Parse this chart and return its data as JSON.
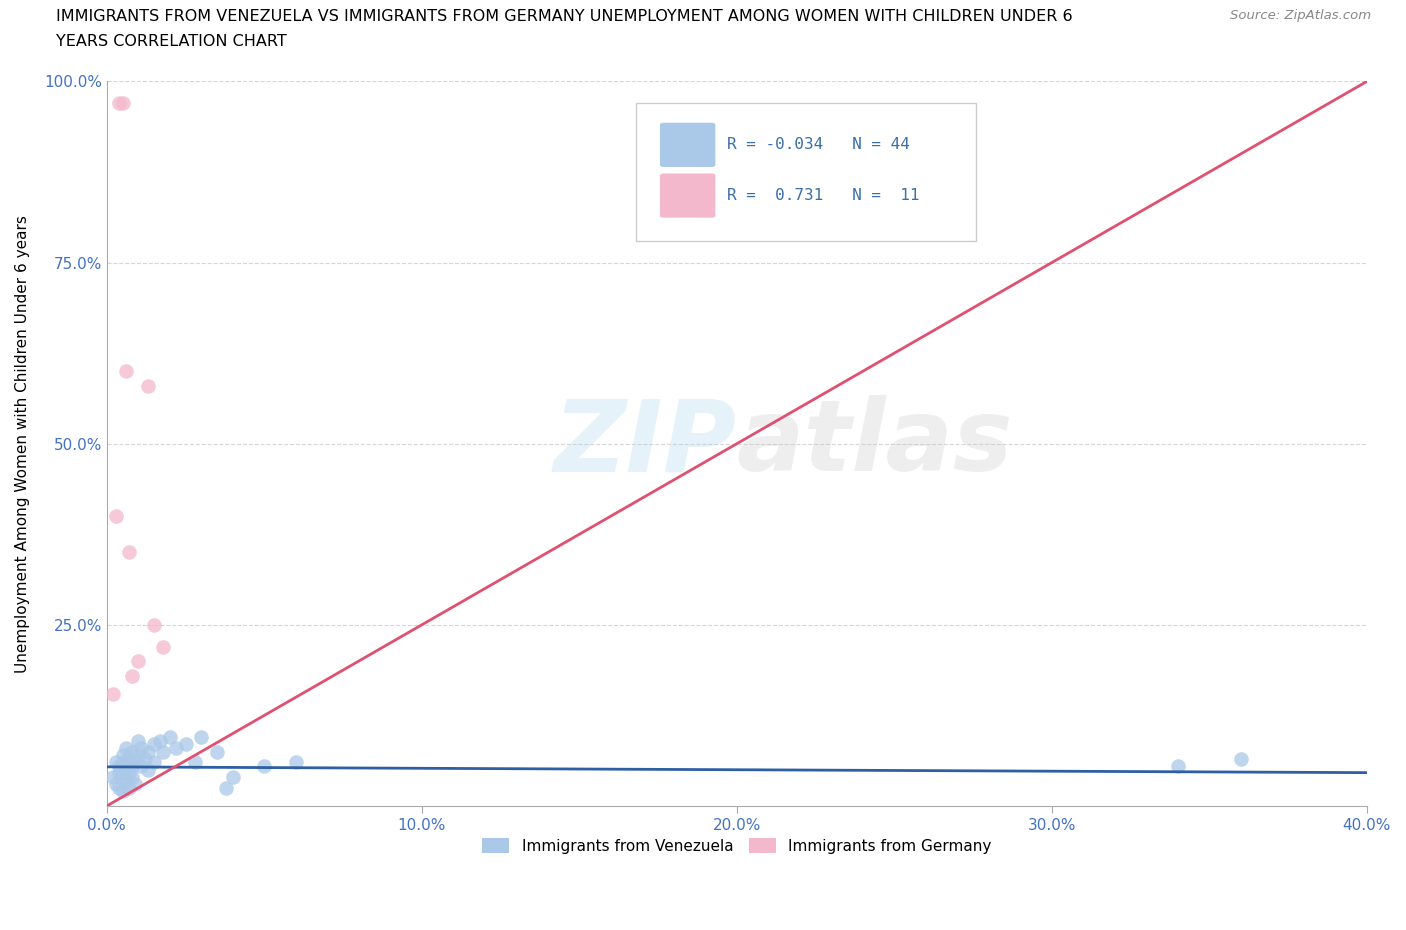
{
  "title_line1": "IMMIGRANTS FROM VENEZUELA VS IMMIGRANTS FROM GERMANY UNEMPLOYMENT AMONG WOMEN WITH CHILDREN UNDER 6",
  "title_line2": "YEARS CORRELATION CHART",
  "source": "Source: ZipAtlas.com",
  "ylabel": "Unemployment Among Women with Children Under 6 years",
  "label_blue": "Immigrants from Venezuela",
  "label_pink": "Immigrants from Germany",
  "legend_blue_R": "-0.034",
  "legend_blue_N": "44",
  "legend_pink_R": "0.731",
  "legend_pink_N": "11",
  "watermark_1": "ZIP",
  "watermark_2": "atlas",
  "xlim": [
    0.0,
    0.4
  ],
  "ylim": [
    0.0,
    1.0
  ],
  "xticks": [
    0.0,
    0.1,
    0.2,
    0.3,
    0.4
  ],
  "yticks": [
    0.25,
    0.5,
    0.75,
    1.0
  ],
  "ytick_labels": [
    "25.0%",
    "50.0%",
    "75.0%",
    "100.0%"
  ],
  "xtick_labels": [
    "0.0%",
    "10.0%",
    "20.0%",
    "30.0%",
    "40.0%"
  ],
  "blue_scatter_color": "#aac8e8",
  "pink_scatter_color": "#f4b8cc",
  "blue_line_color": "#2e5fa3",
  "pink_line_color": "#e05070",
  "grid_color": "#cccccc",
  "background_color": "#ffffff",
  "tick_color": "#4472c4",
  "ven_x": [
    0.002,
    0.003,
    0.003,
    0.004,
    0.004,
    0.004,
    0.005,
    0.005,
    0.005,
    0.005,
    0.006,
    0.006,
    0.006,
    0.007,
    0.007,
    0.007,
    0.008,
    0.008,
    0.008,
    0.009,
    0.009,
    0.01,
    0.01,
    0.011,
    0.011,
    0.012,
    0.013,
    0.013,
    0.015,
    0.015,
    0.017,
    0.018,
    0.02,
    0.022,
    0.025,
    0.028,
    0.03,
    0.035,
    0.038,
    0.04,
    0.05,
    0.06,
    0.34,
    0.36
  ],
  "ven_y": [
    0.04,
    0.06,
    0.03,
    0.055,
    0.025,
    0.045,
    0.07,
    0.04,
    0.02,
    0.06,
    0.05,
    0.08,
    0.035,
    0.065,
    0.045,
    0.025,
    0.055,
    0.075,
    0.04,
    0.06,
    0.03,
    0.07,
    0.09,
    0.055,
    0.08,
    0.065,
    0.075,
    0.05,
    0.085,
    0.06,
    0.09,
    0.075,
    0.095,
    0.08,
    0.085,
    0.06,
    0.095,
    0.075,
    0.025,
    0.04,
    0.055,
    0.06,
    0.055,
    0.065
  ],
  "ger_x": [
    0.002,
    0.003,
    0.004,
    0.005,
    0.006,
    0.007,
    0.008,
    0.01,
    0.013,
    0.015,
    0.018
  ],
  "ger_y": [
    0.155,
    0.4,
    0.97,
    0.97,
    0.6,
    0.35,
    0.18,
    0.2,
    0.58,
    0.25,
    0.22
  ],
  "blue_trend_x": [
    0.0,
    0.4
  ],
  "blue_trend_y": [
    0.054,
    0.046
  ],
  "pink_trend_x": [
    0.0,
    0.4
  ],
  "pink_trend_y": [
    0.0,
    1.0
  ]
}
